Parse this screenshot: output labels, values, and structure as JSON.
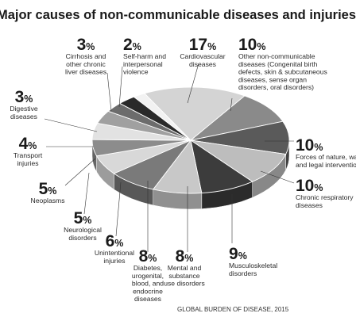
{
  "chart_data": {
    "type": "pie",
    "title": "Major causes of non-communicable diseases and injuries",
    "source": "GLOBAL BURDEN OF DISEASE, 2015",
    "unit": "%",
    "slices": [
      {
        "value": 17,
        "label": [
          "Cardiovascular",
          "diseases"
        ],
        "color": "#d4d4d4"
      },
      {
        "value": 10,
        "label": [
          "Other non-communicable",
          "diseases (Congenital birth",
          "defects, skin & subcutaneous",
          "diseases, sense organ",
          "disorders, oral disorders)"
        ],
        "color": "#8a8a8a"
      },
      {
        "value": 10,
        "label": [
          "Forces of nature, war,",
          "and legal intervention"
        ],
        "color": "#5a5a5a"
      },
      {
        "value": 10,
        "label": [
          "Chronic respiratory",
          "diseases"
        ],
        "color": "#bdbdbd"
      },
      {
        "value": 9,
        "label": [
          "Musculoskeletal",
          "disorders"
        ],
        "color": "#3c3c3c"
      },
      {
        "value": 8,
        "label": [
          "Mental and",
          "substance",
          "use disorders"
        ],
        "color": "#c8c8c8"
      },
      {
        "value": 8,
        "label": [
          "Diabetes,",
          "urogenital,",
          "blood, and",
          "endocrine",
          "diseases"
        ],
        "color": "#7a7a7a"
      },
      {
        "value": 6,
        "label": [
          "Unintentional",
          "injuries"
        ],
        "color": "#d8d8d8"
      },
      {
        "value": 5,
        "label": [
          "Neurological",
          "disorders"
        ],
        "color": "#8c8c8c"
      },
      {
        "value": 5,
        "label": [
          "Neoplasms"
        ],
        "color": "#e2e2e2"
      },
      {
        "value": 4,
        "label": [
          "Transport",
          "injuries"
        ],
        "color": "#a0a0a0"
      },
      {
        "value": 3,
        "label": [
          "Digestive",
          "diseases"
        ],
        "color": "#6c6c6c"
      },
      {
        "value": 3,
        "label": [
          "Cirrhosis and",
          "other chronic",
          "liver diseases"
        ],
        "color": "#2a2a2a"
      },
      {
        "value": 2,
        "label": [
          "Self-harm and",
          "interpersonal",
          "violence"
        ],
        "color": "#f2f2f2"
      }
    ]
  }
}
